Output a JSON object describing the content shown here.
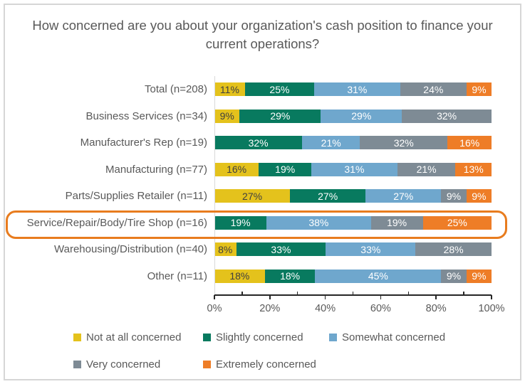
{
  "chart_data": {
    "type": "bar",
    "subtype": "stacked-horizontal",
    "title": "How concerned are you about your organization's cash position to finance your current operations?",
    "series": [
      "Not at all concerned",
      "Slightly concerned",
      "Somewhat concerned",
      "Very concerned",
      "Extremely concerned"
    ],
    "colors": [
      "#E4C21C",
      "#087A5F",
      "#6FA7CD",
      "#7E8B95",
      "#EE7D27"
    ],
    "rows": [
      {
        "label": "Total (n=208)",
        "values": [
          11,
          25,
          31,
          24,
          9
        ]
      },
      {
        "label": "Business Services (n=34)",
        "values": [
          9,
          29,
          29,
          32,
          0
        ]
      },
      {
        "label": "Manufacturer's Rep (n=19)",
        "values": [
          0,
          32,
          21,
          32,
          16
        ]
      },
      {
        "label": "Manufacturing (n=77)",
        "values": [
          16,
          19,
          31,
          21,
          13
        ]
      },
      {
        "label": "Parts/Supplies Retailer (n=11)",
        "values": [
          27,
          27,
          27,
          9,
          9
        ]
      },
      {
        "label": "Service/Repair/Body/Tire Shop (n=16)",
        "values": [
          0,
          19,
          38,
          19,
          25
        ],
        "highlighted": true
      },
      {
        "label": "Warehousing/Distribution (n=40)",
        "values": [
          8,
          33,
          33,
          28,
          0
        ]
      },
      {
        "label": "Other (n=11)",
        "values": [
          18,
          18,
          45,
          9,
          9
        ]
      }
    ],
    "value_suffix": "%",
    "x_axis": {
      "min": 0,
      "max": 100,
      "major_tick_step": 20,
      "minor_tick_step": 10,
      "tick_labels": [
        "0%",
        "20%",
        "40%",
        "60%",
        "80%",
        "100%"
      ]
    },
    "legend_position": "bottom",
    "grid": false,
    "segment_label_color_default": "#FFFFFF",
    "segment_label_color_on_yellow": "#3F3F3F",
    "highlight_border_color": "#E87C1E",
    "title_color": "#595959",
    "axis_text_color": "#595959",
    "frame_border_color": "#D6D6D6"
  }
}
